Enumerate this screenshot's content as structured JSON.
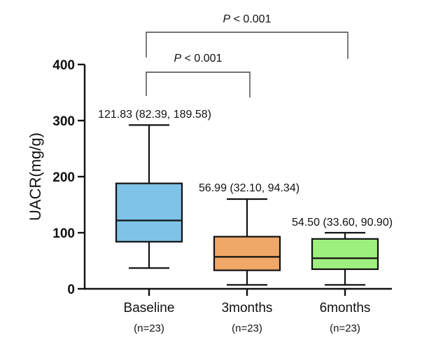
{
  "chart_data": {
    "type": "box",
    "title": "",
    "xlabel": "",
    "ylabel": "UACR(mg/g)",
    "ylim": [
      0,
      400
    ],
    "yticks": [
      0,
      100,
      200,
      300,
      400
    ],
    "categories": [
      "Baseline",
      "3months",
      "6months"
    ],
    "sample_sizes": [
      "(n=23)",
      "(n=23)",
      "(n=23)"
    ],
    "boxes": [
      {
        "name": "Baseline",
        "min": 37,
        "q1": 84,
        "median": 121.83,
        "q3": 188,
        "max": 292,
        "color": "#7fc3e8",
        "annotation": "121.83 (82.39, 189.58)"
      },
      {
        "name": "3months",
        "min": 7,
        "q1": 33,
        "median": 56.99,
        "q3": 93,
        "max": 160,
        "color": "#f0a868",
        "annotation": "56.99 (32.10, 94.34)"
      },
      {
        "name": "6months",
        "min": 7,
        "q1": 35,
        "median": 54.5,
        "q3": 89,
        "max": 100,
        "color": "#9ef07e",
        "annotation": "54.50 (33.60, 90.90)"
      }
    ],
    "significance": [
      {
        "from": "Baseline",
        "to": "3months",
        "p_prefix": "P",
        "p_text": " < 0.001"
      },
      {
        "from": "Baseline",
        "to": "6months",
        "p_prefix": "P",
        "p_text": " < 0.001"
      }
    ]
  }
}
